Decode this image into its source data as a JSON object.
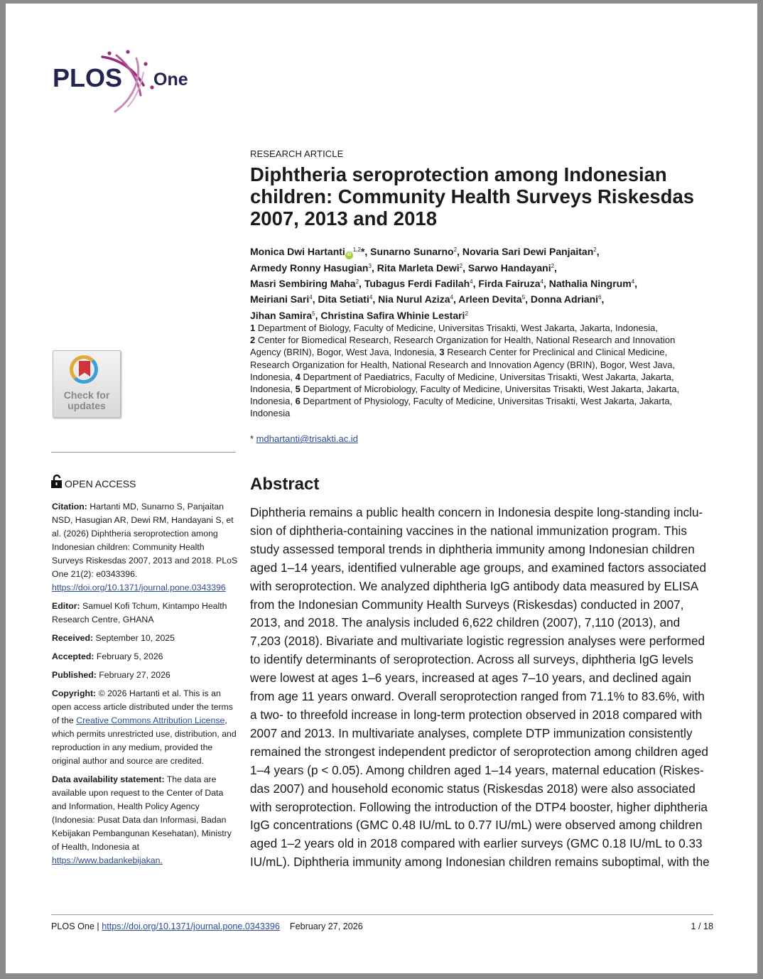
{
  "brand": {
    "logo_text": "PLOS One",
    "logo_colors": {
      "text": "#23254f",
      "accent": "#9a2b7b"
    }
  },
  "article": {
    "kicker": "RESEARCH ARTICLE",
    "title": "Diphtheria seroprotection among Indonesian children: Community Health Surveys Riskesdas 2007, 2013 and 2018",
    "author_lines": [
      [
        {
          "name": "Monica Dwi Hartanti",
          "orcid": true,
          "sup": "1,2",
          "mark": "*"
        },
        {
          "name": "Sunarno Sunarno",
          "sup": "2"
        },
        {
          "name": "Novaria Sari Dewi Panjaitan",
          "sup": "2"
        }
      ],
      [
        {
          "name": "Armedy Ronny Hasugian",
          "sup": "3"
        },
        {
          "name": "Rita Marleta Dewi",
          "sup": "2"
        },
        {
          "name": "Sarwo Handayani",
          "sup": "2"
        }
      ],
      [
        {
          "name": "Masri Sembiring Maha",
          "sup": "2"
        },
        {
          "name": "Tubagus Ferdi Fadilah",
          "sup": "4"
        },
        {
          "name": "Firda Fairuza",
          "sup": "4"
        },
        {
          "name": "Nathalia Ningrum",
          "sup": "4"
        }
      ],
      [
        {
          "name": "Meiriani Sari",
          "sup": "4"
        },
        {
          "name": "Dita Setiati",
          "sup": "4"
        },
        {
          "name": "Nia Nurul Aziza",
          "sup": "4"
        },
        {
          "name": "Arleen Devita",
          "sup": "5"
        },
        {
          "name": "Donna Adriani",
          "sup": "6"
        }
      ],
      [
        {
          "name": "Jihan Samira",
          "sup": "5"
        },
        {
          "name": "Christina Safira Whinie Lestari",
          "sup": "2"
        }
      ]
    ],
    "affiliation_lines": [
      "<b>1</b>  Department of Biology, Faculty of Medicine, Universitas Trisakti, West Jakarta, Jakarta, Indonesia,",
      "<b>2</b>  Center for Biomedical Research, Research Organization for Health, National Research and Innovation",
      "Agency (BRIN), Bogor, West Java, Indonesia, <b>3</b>  Research Center for Preclinical and Clinical Medicine,",
      "Research Organization for Health, National Research and Innovation Agency (BRIN), Bogor, West Java,",
      "Indonesia, <b>4</b>  Department of Paediatrics, Faculty of Medicine, Universitas Trisakti, West Jakarta, Jakarta,",
      "Indonesia, <b>5</b>  Department of Microbiology, Faculty of Medicine, Universitas Trisakti, West Jakarta, Jakarta,",
      "Indonesia, <b>6</b>  Department of Physiology, Faculty of Medicine, Universitas Trisakti, West Jakarta, Jakarta,",
      "Indonesia"
    ],
    "email_prefix": "* ",
    "email": "mdhartanti@trisakti.ac.id"
  },
  "check_updates": {
    "label_1": "Check for",
    "label_2": "updates"
  },
  "sidebar": {
    "open_access": "OPEN ACCESS",
    "citation_label": "Citation:",
    "citation_text": " Hartanti MD, Sunarno S, Panjaitan NSD, Hasugian AR, Dewi RM, Handayani S, et al. (2026) Diphtheria seroprotection among Indonesian children: Community Health Surveys Riskesdas 2007, 2013 and 2018. PLoS One 21(2): e0343396.",
    "citation_doi": "https://doi.org/10.1371/journal.pone.0343396",
    "editor_label": "Editor:",
    "editor_text": " Samuel Kofi Tchum, Kintampo Health Research Centre, GHANA",
    "received_label": "Received:",
    "received_text": " September 10, 2025",
    "accepted_label": "Accepted:",
    "accepted_text": " February 5, 2026",
    "published_label": "Published:",
    "published_text": " February 27, 2026",
    "copyright_label": "Copyright:",
    "copyright_text_1": " © 2026 Hartanti et al. This is an open access article distributed under the terms of the ",
    "copyright_link": "Creative Commons Attribution License",
    "copyright_text_2": ", which permits unrestricted use, distribution, and reproduction in any medium, provided the original author and source are credited.",
    "data_label": "Data availability statement:",
    "data_text": " The data are available upon request to the Center of Data and Information, Health Policy Agency (Indonesia: Pusat Data dan Informasi, Badan Kebijakan Pembangunan Kesehatan), Ministry of Health, Indonesia at ",
    "data_link": "https://www.badankebijakan."
  },
  "abstract": {
    "heading": "Abstract",
    "lines": [
      "Diphtheria remains a public health concern in Indonesia despite long-standing inclu-",
      "sion of diphtheria-containing vaccines in the national immunization program. This",
      "study assessed temporal trends in diphtheria immunity among Indonesian children",
      "aged 1–14 years, identified vulnerable age groups, and examined factors associated",
      "with seroprotection. We analyzed diphtheria IgG antibody data measured by ELISA",
      "from the Indonesian Community Health Surveys (Riskesdas) conducted in 2007,",
      "2013, and 2018. The analysis included 6,622 children (2007), 7,110 (2013), and",
      "7,203 (2018). Bivariate and multivariate logistic regression analyses were performed",
      "to identify determinants of seroprotection. Across all surveys, diphtheria IgG levels",
      "were lowest at ages 1–6 years, increased at ages 7–10 years, and declined again",
      "from age 11 years onward. Overall seroprotection ranged from 71.1% to 83.6%, with",
      "a two- to threefold increase in long-term protection observed in 2018 compared with",
      "2007 and 2013. In multivariate analyses, complete DTP immunization consistently",
      "remained the strongest independent predictor of seroprotection among children aged",
      "1–4 years (p < 0.05). Among children aged 1–14 years, maternal education (Riskes-",
      "das 2007) and household economic status (Riskesdas 2018) were also associated",
      "with seroprotection. Following the introduction of the DTP4 booster, higher diphtheria",
      "IgG concentrations (GMC 0.48 IU/mL to 0.77 IU/mL) were observed among children",
      "aged 1–2 years old in 2018 compared with earlier surveys (GMC 0.18 IU/mL to 0.33",
      "IU/mL). Diphtheria immunity among Indonesian children remains suboptimal, with the"
    ]
  },
  "footer": {
    "journal": "PLOS One | ",
    "doi": "https://doi.org/10.1371/journal.pone.0343396",
    "date": "February 27, 2026",
    "page": "1 / 18"
  }
}
